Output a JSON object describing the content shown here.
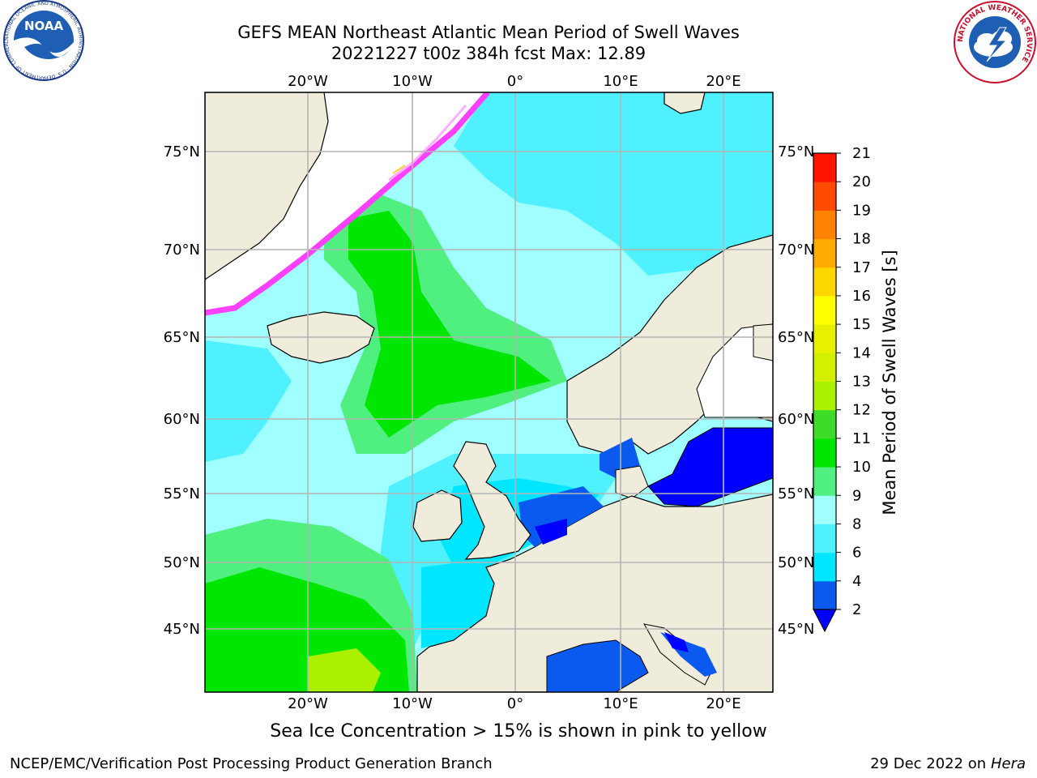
{
  "title_line1": "GEFS MEAN Northeast Atlantic Mean Period of Swell Waves",
  "title_line2": "20221227 t00z 384h fcst   Max: 12.89",
  "map": {
    "lon_labels_top": [
      "20°W",
      "10°W",
      "0°",
      "10°E",
      "20°E"
    ],
    "lon_labels_bottom": [
      "20°W",
      "10°W",
      "0°",
      "10°E",
      "20°E"
    ],
    "lat_labels_left": [
      "75°N",
      "70°N",
      "65°N",
      "60°N",
      "55°N",
      "50°N",
      "45°N"
    ],
    "lat_labels_right": [
      "75°N",
      "70°N",
      "65°N",
      "60°N",
      "55°N",
      "50°N",
      "45°N"
    ]
  },
  "colorbar": {
    "label": "Mean Period of Swell Waves [s]",
    "ticks": [
      "2",
      "4",
      "6",
      "8",
      "9",
      "10",
      "11",
      "12",
      "13",
      "14",
      "15",
      "16",
      "17",
      "18",
      "19",
      "20",
      "21"
    ],
    "colors": [
      "#0a5af0",
      "#00e6ff",
      "#4ff0ff",
      "#a0ffff",
      "#50f080",
      "#00e600",
      "#3cdc28",
      "#aaf000",
      "#d2f000",
      "#e6f000",
      "#ffff00",
      "#ffd700",
      "#ffaa00",
      "#ff8200",
      "#ff4b00",
      "#ff1400"
    ],
    "under_color": "#0000ff"
  },
  "caption": "Sea Ice Concentration > 15% is shown in pink to yellow",
  "footer_left": "NCEP/EMC/Verification Post Processing Product Generation Branch",
  "footer_right_date": "29 Dec 2022 on",
  "footer_right_host": "Hera",
  "logos": {
    "noaa_text": "NOAA",
    "noaa_ring_text": "NATIONAL OCEANIC AND ATMOSPHERIC ADMINISTRATION · U.S. DEPARTMENT OF COMMERCE",
    "nws_ring_text": "NATIONAL WEATHER SERVICE"
  },
  "colors": {
    "land": "#efecdc",
    "ice_free_white": "#ffffff",
    "grid": "#b4b4b4",
    "swell_8_9": "#a0ffff",
    "swell_6_8": "#4ff0ff",
    "swell_4_6": "#00e6ff",
    "swell_9_10": "#50f080",
    "swell_10_11": "#00e600",
    "swell_2_4": "#0a5af0",
    "swell_lt2": "#0000ff",
    "sea_ice": "#ff40ff"
  }
}
